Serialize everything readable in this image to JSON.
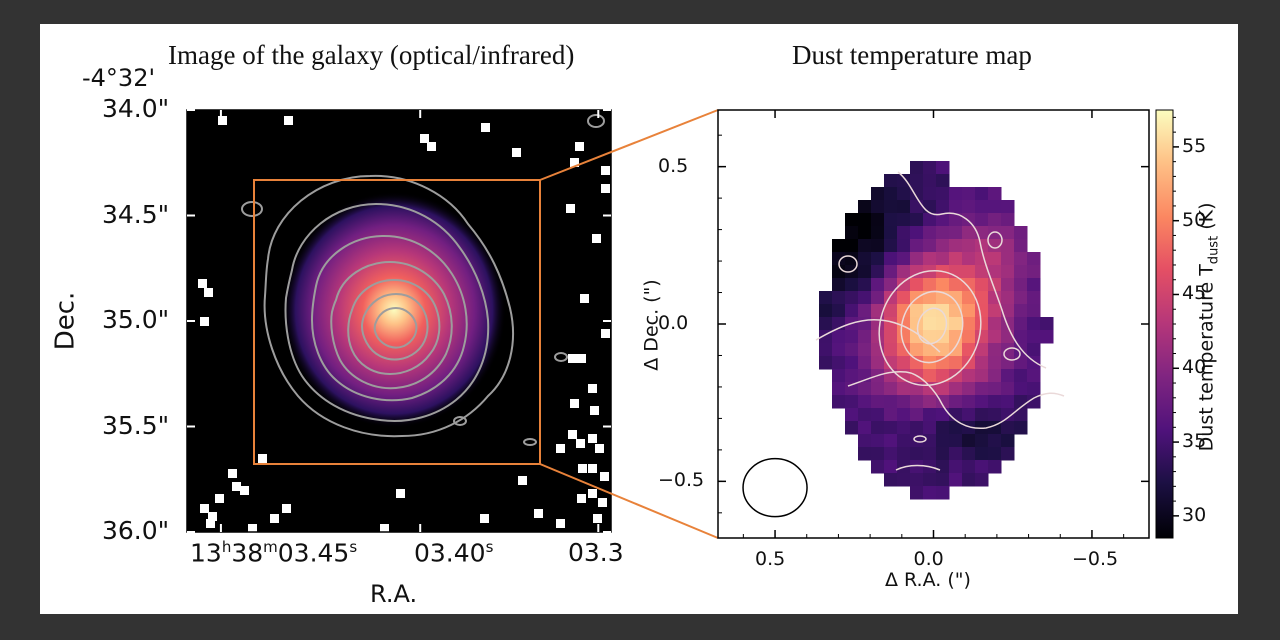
{
  "figure": {
    "left_title": "Image of the galaxy (optical/infrared)",
    "right_title": "Dust temperature map",
    "dec_offset_label": "-4°32'"
  },
  "chart_data": [
    {
      "type": "heatmap",
      "title": "Image of the galaxy (optical/infrared)",
      "xlabel": "R.A.",
      "ylabel": "Dec.",
      "x_ticks": [
        {
          "h": "13",
          "m": "38",
          "s": "03.45",
          "sup_h": "h",
          "sup_m": "m",
          "sup_s": "s",
          "pos": 0.08
        },
        {
          "label": "03.40",
          "sup": "s",
          "pos": 0.55
        },
        {
          "label": "03.3",
          "pos": 0.97
        }
      ],
      "y_ticks": [
        "34.0\"",
        "34.5\"",
        "35.0\"",
        "35.5\"",
        "36.0\""
      ],
      "y_tick_values": [
        34.0,
        34.5,
        35.0,
        35.5,
        36.0
      ],
      "colormap": "magma",
      "background": "black",
      "contours": 7,
      "zoom_box_color": "#e8823a"
    },
    {
      "type": "heatmap",
      "title": "Dust temperature map",
      "xlabel": "Δ R.A. (\")",
      "ylabel": "Δ Dec. (\")",
      "xlim": [
        0.68,
        -0.68
      ],
      "ylim": [
        -0.68,
        0.68
      ],
      "x_ticks": [
        0.5,
        0.0,
        -0.5
      ],
      "x_tick_labels": [
        "0.5",
        "0.0",
        "−0.5"
      ],
      "y_ticks": [
        0.5,
        0.0,
        -0.5
      ],
      "y_tick_labels": [
        "0.5",
        "0.0",
        "−0.5"
      ],
      "colorbar": {
        "label": "Dust temperature T",
        "label_sub": "dust",
        "label_unit": "(K)",
        "range": [
          28.5,
          57.5
        ],
        "ticks": [
          30,
          35,
          40,
          45,
          50,
          55
        ],
        "colormap": "magma"
      },
      "peak": {
        "x": 0.0,
        "y": 0.0,
        "value": 57
      },
      "beam": {
        "x": 0.5,
        "y": -0.52,
        "major": 0.22,
        "minor": 0.18
      }
    }
  ]
}
